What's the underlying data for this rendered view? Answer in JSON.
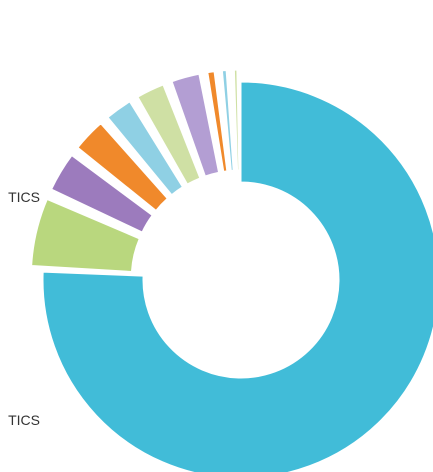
{
  "chart_data": {
    "type": "pie",
    "variant": "exploded-donut",
    "title": "",
    "unit": "%",
    "slices": [
      {
        "value": 74.5,
        "color": "#41bcd8",
        "label": "TICS"
      },
      {
        "value": 6.0,
        "color": "#b9d77e",
        "label": "TICS"
      },
      {
        "value": 3.7,
        "color": "#9c7bbd",
        "label": ""
      },
      {
        "value": 3.2,
        "color": "#f0892b",
        "label": ""
      },
      {
        "value": 2.7,
        "color": "#8fd0e4",
        "label": ""
      },
      {
        "value": 2.8,
        "color": "#cfe0a4",
        "label": ""
      },
      {
        "value": 2.8,
        "color": "#b39ed3",
        "label": ""
      },
      {
        "value": 1.1,
        "color": "#f0892b",
        "label": ""
      },
      {
        "value": 0.9,
        "color": "#8fd0e4",
        "label": ""
      },
      {
        "value": 0.8,
        "color": "#cfe0a4",
        "label": ""
      }
    ]
  }
}
